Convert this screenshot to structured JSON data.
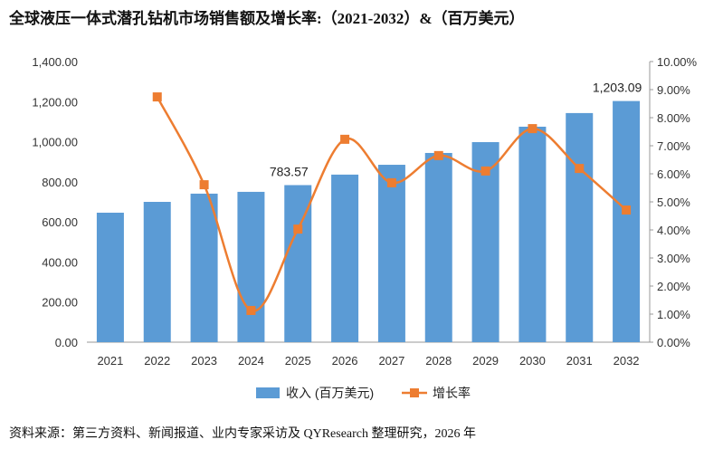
{
  "title": "全球液压一体式潜孔钻机市场销售额及增长率:（2021-2032）&（百万美元）",
  "source": "资料来源：第三方资料、新闻报道、业内专家采访及 QYResearch 整理研究，2026 年",
  "chart_data": {
    "type": "bar+line",
    "categories": [
      "2021",
      "2022",
      "2023",
      "2024",
      "2025",
      "2026",
      "2027",
      "2028",
      "2029",
      "2030",
      "2031",
      "2032"
    ],
    "series": [
      {
        "name": "收入 (百万美元)",
        "type": "bar",
        "axis": "left",
        "color": "#5B9BD5",
        "values": [
          646,
          700,
          741,
          750,
          783.57,
          836,
          885,
          944,
          998,
          1075,
          1143,
          1203.09
        ]
      },
      {
        "name": "增长率",
        "type": "line",
        "axis": "right",
        "color": "#ED7D31",
        "values": [
          null,
          8.74,
          5.61,
          1.13,
          4.03,
          7.23,
          5.68,
          6.65,
          6.1,
          7.61,
          6.19,
          4.71
        ]
      }
    ],
    "data_labels": [
      {
        "category": "2025",
        "text": "783.57"
      },
      {
        "category": "2032",
        "text": "1,203.09"
      }
    ],
    "y_left": {
      "range": [
        0,
        1400
      ],
      "ticks": [
        "0.00",
        "200.00",
        "400.00",
        "600.00",
        "800.00",
        "1,000.00",
        "1,200.00",
        "1,400.00"
      ]
    },
    "y_right": {
      "range": [
        0,
        10
      ],
      "ticks": [
        "0.00%",
        "1.00%",
        "2.00%",
        "3.00%",
        "4.00%",
        "5.00%",
        "6.00%",
        "7.00%",
        "8.00%",
        "9.00%",
        "10.00%"
      ]
    },
    "grid": false,
    "legend": "bottom"
  }
}
